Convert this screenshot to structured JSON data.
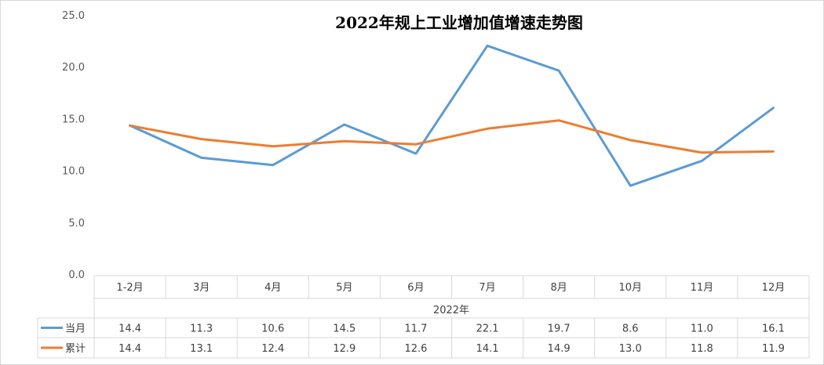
{
  "chart_data": {
    "type": "line",
    "title": "2022年规上工业增加值增速走势图",
    "xlabel": "2022年",
    "ylabel": "",
    "categories": [
      "1-2月",
      "3月",
      "4月",
      "5月",
      "6月",
      "7月",
      "8月",
      "10月",
      "11月",
      "12月"
    ],
    "y_ticks": [
      "0.0",
      "5.0",
      "10.0",
      "15.0",
      "20.0",
      "25.0"
    ],
    "ylim": [
      0,
      25
    ],
    "grid": false,
    "legend": "data-table",
    "series": [
      {
        "name": "当月",
        "color": "#5b9bd5",
        "values": [
          14.4,
          11.3,
          10.6,
          14.5,
          11.7,
          22.1,
          19.7,
          8.6,
          11.0,
          16.1
        ],
        "labels": [
          "14.4",
          "11.3",
          "10.6",
          "14.5",
          "11.7",
          "22.1",
          "19.7",
          "8.6",
          "11.0",
          "16.1"
        ]
      },
      {
        "name": "累计",
        "color": "#ed7d31",
        "values": [
          14.4,
          13.1,
          12.4,
          12.9,
          12.6,
          14.1,
          14.9,
          13.0,
          11.8,
          11.9
        ],
        "labels": [
          "14.4",
          "13.1",
          "12.4",
          "12.9",
          "12.6",
          "14.1",
          "14.9",
          "13.0",
          "11.8",
          "11.9"
        ]
      }
    ]
  }
}
